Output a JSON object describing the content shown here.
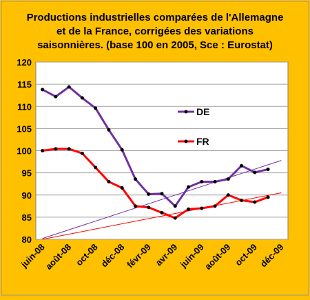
{
  "chart_data": {
    "type": "line",
    "title": [
      "Productions industrielles comparées de l'Allemagne",
      "et de la France, corrigées des variations",
      "saisonnières. (base 100 en 2005, Sce : Eurostat)"
    ],
    "categories": [
      "juin-08",
      null,
      "août-08",
      null,
      "oct-08",
      null,
      "déc-08",
      null,
      "févr-09",
      null,
      "avr-09",
      null,
      "juin-09",
      null,
      "août-09",
      null,
      "oct-09",
      null,
      "déc-09"
    ],
    "series": [
      {
        "name": "DE",
        "color": "#7030A0",
        "values": [
          113.8,
          112.2,
          114.4,
          111.9,
          109.6,
          104.7,
          100.2,
          93.6,
          90.2,
          90.3,
          87.5,
          91.8,
          93.0,
          93.0,
          93.6,
          96.6,
          95.1,
          95.8,
          null
        ]
      },
      {
        "name": "FR",
        "color": "#FF0000",
        "values": [
          100.0,
          100.4,
          100.4,
          99.4,
          96.2,
          93.0,
          91.6,
          87.5,
          87.2,
          86.0,
          84.8,
          86.8,
          87.0,
          87.5,
          90.0,
          88.8,
          88.4,
          89.5,
          null
        ]
      }
    ],
    "trendlines": [
      {
        "color": "#7030A0",
        "values": [
          80.2,
          97.8
        ]
      },
      {
        "color": "#FF0000",
        "values": [
          80.0,
          90.5
        ]
      }
    ],
    "ylim": [
      80,
      120
    ],
    "yticks": [
      80,
      85,
      90,
      95,
      100,
      105,
      110,
      115,
      120
    ],
    "grid": true,
    "legend": "inside"
  }
}
